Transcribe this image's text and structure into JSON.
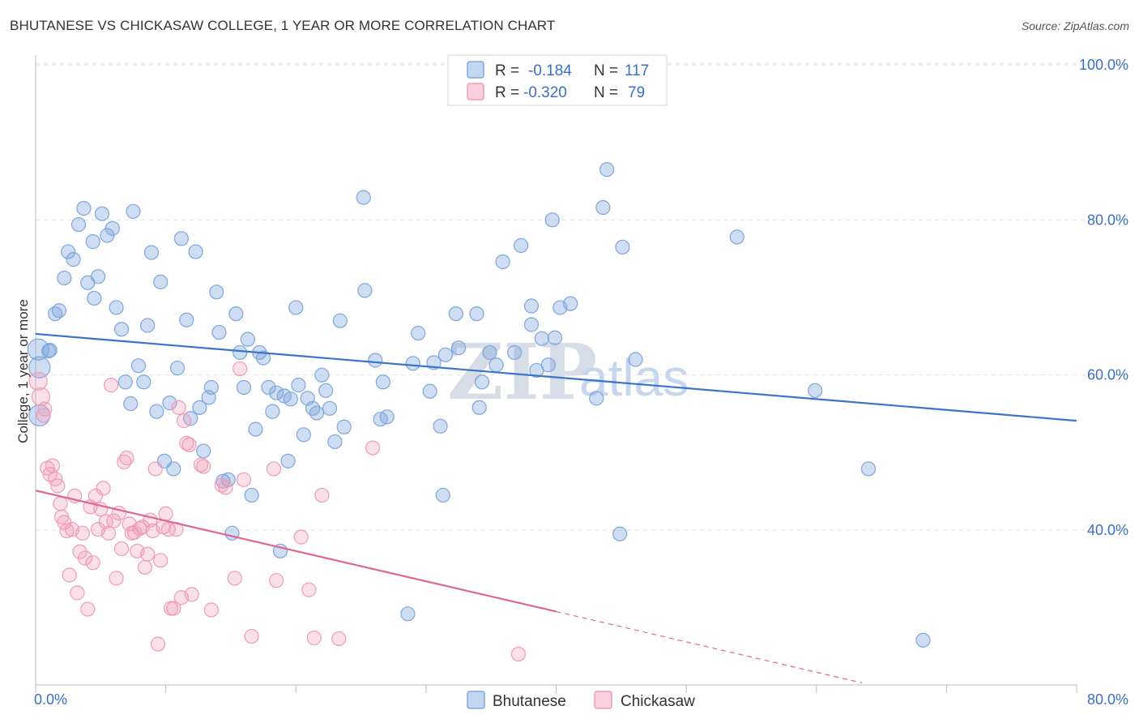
{
  "title": "BHUTANESE VS CHICKASAW COLLEGE, 1 YEAR OR MORE CORRELATION CHART",
  "source": "Source: ZipAtlas.com",
  "legend": {
    "r_label": "R =",
    "n_label": "N =",
    "rows": [
      {
        "name": "Bhutanese",
        "r": "-0.184",
        "n": "117"
      },
      {
        "name": "Chickasaw",
        "r": "-0.320",
        "n": "79"
      }
    ]
  },
  "watermark": {
    "zip": "ZIP",
    "atlas": "atlas"
  },
  "chart_data": {
    "type": "scatter",
    "title": "BHUTANESE VS CHICKASAW COLLEGE, 1 YEAR OR MORE CORRELATION CHART",
    "xlabel": "",
    "ylabel": "College, 1 year or more",
    "xlim": [
      0,
      80
    ],
    "ylim": [
      20,
      103
    ],
    "x_tick_labels": [
      "0.0%",
      "80.0%"
    ],
    "y_ticks": [
      40,
      60,
      80,
      100
    ],
    "y_tick_labels": [
      "40.0%",
      "60.0%",
      "80.0%",
      "100.0%"
    ],
    "grid": true,
    "legend_position": "top-center",
    "colors": {
      "Bhutanese": "#7ea6de",
      "Chickasaw": "#f09ab7",
      "blue_line": "#3a74c9",
      "pink_line": "#e0668f"
    },
    "series": [
      {
        "name": "Bhutanese",
        "trend": {
          "x": [
            0,
            80
          ],
          "y": [
            65.3,
            54.1
          ]
        },
        "points": [
          [
            0.3,
            54.8
          ],
          [
            0.3,
            61.0
          ],
          [
            1.1,
            63.2
          ],
          [
            1.5,
            67.9
          ],
          [
            1.8,
            68.3
          ],
          [
            2.2,
            72.5
          ],
          [
            2.5,
            75.9
          ],
          [
            2.9,
            74.9
          ],
          [
            3.3,
            79.4
          ],
          [
            3.7,
            81.5
          ],
          [
            4.0,
            71.9
          ],
          [
            4.4,
            77.2
          ],
          [
            4.8,
            72.7
          ],
          [
            5.1,
            80.8
          ],
          [
            5.5,
            78.0
          ],
          [
            5.9,
            78.9
          ],
          [
            6.2,
            68.7
          ],
          [
            6.6,
            65.9
          ],
          [
            6.9,
            59.1
          ],
          [
            7.3,
            56.3
          ],
          [
            7.5,
            81.1
          ],
          [
            7.9,
            61.2
          ],
          [
            8.3,
            59.1
          ],
          [
            8.6,
            66.4
          ],
          [
            8.9,
            75.8
          ],
          [
            9.3,
            55.3
          ],
          [
            9.6,
            72.0
          ],
          [
            9.9,
            48.9
          ],
          [
            10.3,
            56.4
          ],
          [
            10.6,
            47.9
          ],
          [
            10.9,
            60.9
          ],
          [
            11.2,
            77.6
          ],
          [
            11.6,
            67.1
          ],
          [
            11.9,
            54.4
          ],
          [
            12.3,
            75.9
          ],
          [
            12.6,
            55.8
          ],
          [
            12.9,
            50.2
          ],
          [
            13.3,
            57.1
          ],
          [
            13.5,
            58.4
          ],
          [
            13.9,
            70.7
          ],
          [
            14.1,
            65.5
          ],
          [
            14.4,
            46.3
          ],
          [
            14.8,
            46.5
          ],
          [
            15.1,
            39.6
          ],
          [
            15.4,
            67.9
          ],
          [
            15.7,
            62.9
          ],
          [
            16.0,
            58.4
          ],
          [
            16.3,
            64.6
          ],
          [
            16.6,
            44.5
          ],
          [
            16.9,
            53.0
          ],
          [
            17.2,
            62.9
          ],
          [
            17.5,
            62.2
          ],
          [
            17.9,
            58.4
          ],
          [
            18.2,
            55.3
          ],
          [
            18.5,
            57.7
          ],
          [
            18.8,
            37.3
          ],
          [
            19.1,
            57.3
          ],
          [
            19.4,
            48.9
          ],
          [
            19.6,
            56.9
          ],
          [
            20.0,
            68.7
          ],
          [
            20.2,
            58.7
          ],
          [
            20.6,
            52.3
          ],
          [
            20.9,
            57.0
          ],
          [
            21.3,
            55.7
          ],
          [
            21.6,
            55.1
          ],
          [
            22.0,
            60.0
          ],
          [
            22.3,
            58.0
          ],
          [
            22.6,
            55.7
          ],
          [
            23.0,
            51.4
          ],
          [
            23.4,
            67.0
          ],
          [
            23.7,
            53.3
          ],
          [
            25.2,
            82.9
          ],
          [
            25.3,
            70.9
          ],
          [
            26.1,
            61.9
          ],
          [
            26.5,
            54.3
          ],
          [
            26.7,
            59.1
          ],
          [
            27.0,
            54.6
          ],
          [
            28.6,
            29.2
          ],
          [
            29.0,
            61.5
          ],
          [
            29.4,
            65.4
          ],
          [
            30.3,
            57.9
          ],
          [
            30.6,
            61.6
          ],
          [
            31.1,
            53.4
          ],
          [
            31.3,
            44.5
          ],
          [
            31.5,
            62.6
          ],
          [
            32.3,
            67.9
          ],
          [
            32.5,
            63.5
          ],
          [
            33.9,
            67.9
          ],
          [
            34.1,
            55.8
          ],
          [
            34.3,
            59.1
          ],
          [
            34.9,
            62.9
          ],
          [
            35.4,
            61.3
          ],
          [
            35.9,
            74.6
          ],
          [
            36.8,
            62.9
          ],
          [
            37.3,
            76.7
          ],
          [
            38.1,
            66.5
          ],
          [
            38.1,
            68.9
          ],
          [
            38.5,
            60.6
          ],
          [
            38.9,
            64.7
          ],
          [
            39.4,
            61.3
          ],
          [
            39.7,
            80.0
          ],
          [
            39.9,
            64.8
          ],
          [
            40.3,
            68.7
          ],
          [
            41.1,
            69.2
          ],
          [
            43.1,
            57.0
          ],
          [
            43.6,
            81.6
          ],
          [
            43.9,
            86.5
          ],
          [
            44.9,
            39.5
          ],
          [
            45.1,
            76.5
          ],
          [
            46.1,
            62.0
          ],
          [
            53.9,
            77.8
          ],
          [
            59.9,
            58.0
          ],
          [
            64.0,
            47.9
          ],
          [
            68.2,
            25.8
          ],
          [
            0.2,
            63.3
          ],
          [
            1.0,
            63.1
          ],
          [
            4.5,
            69.9
          ]
        ]
      },
      {
        "name": "Chickasaw",
        "trend": {
          "x": [
            0,
            40
          ],
          "y": [
            45.1,
            29.5
          ]
        },
        "trend_dashed": {
          "x": [
            40,
            63.5
          ],
          "y": [
            29.5,
            20.3
          ]
        },
        "points": [
          [
            0.2,
            59.2
          ],
          [
            0.4,
            57.2
          ],
          [
            0.6,
            54.8
          ],
          [
            0.7,
            55.6
          ],
          [
            0.9,
            48.0
          ],
          [
            1.1,
            47.2
          ],
          [
            1.3,
            48.3
          ],
          [
            1.5,
            46.6
          ],
          [
            1.7,
            45.7
          ],
          [
            1.9,
            43.4
          ],
          [
            2.0,
            41.7
          ],
          [
            2.2,
            41.0
          ],
          [
            2.4,
            39.9
          ],
          [
            2.6,
            34.2
          ],
          [
            2.8,
            40.1
          ],
          [
            3.0,
            44.4
          ],
          [
            3.2,
            31.9
          ],
          [
            3.4,
            37.2
          ],
          [
            3.6,
            39.6
          ],
          [
            3.8,
            36.4
          ],
          [
            4.0,
            29.8
          ],
          [
            4.2,
            43.0
          ],
          [
            4.4,
            35.8
          ],
          [
            4.6,
            44.4
          ],
          [
            4.8,
            40.1
          ],
          [
            5.0,
            42.7
          ],
          [
            5.2,
            45.4
          ],
          [
            5.4,
            41.1
          ],
          [
            5.6,
            39.6
          ],
          [
            5.8,
            58.7
          ],
          [
            6.0,
            41.2
          ],
          [
            6.2,
            33.8
          ],
          [
            6.4,
            42.2
          ],
          [
            6.6,
            37.6
          ],
          [
            6.8,
            48.8
          ],
          [
            7.0,
            49.3
          ],
          [
            7.2,
            40.8
          ],
          [
            7.4,
            39.6
          ],
          [
            7.6,
            39.7
          ],
          [
            7.8,
            37.3
          ],
          [
            8.0,
            40.2
          ],
          [
            8.2,
            40.4
          ],
          [
            8.4,
            35.2
          ],
          [
            8.6,
            36.9
          ],
          [
            8.8,
            41.3
          ],
          [
            9.0,
            39.9
          ],
          [
            9.2,
            47.9
          ],
          [
            9.4,
            25.3
          ],
          [
            9.6,
            36.1
          ],
          [
            9.8,
            40.4
          ],
          [
            10.0,
            42.1
          ],
          [
            10.2,
            40.1
          ],
          [
            10.4,
            29.9
          ],
          [
            10.6,
            29.9
          ],
          [
            10.8,
            40.1
          ],
          [
            11.0,
            55.8
          ],
          [
            11.2,
            31.3
          ],
          [
            11.4,
            54.1
          ],
          [
            11.6,
            51.2
          ],
          [
            11.8,
            51.0
          ],
          [
            12.0,
            31.7
          ],
          [
            12.7,
            48.4
          ],
          [
            12.9,
            48.2
          ],
          [
            13.5,
            29.7
          ],
          [
            14.3,
            45.8
          ],
          [
            14.6,
            45.5
          ],
          [
            15.3,
            33.8
          ],
          [
            15.7,
            60.8
          ],
          [
            16.0,
            46.5
          ],
          [
            16.6,
            26.3
          ],
          [
            18.3,
            47.9
          ],
          [
            18.5,
            33.5
          ],
          [
            20.4,
            39.1
          ],
          [
            21.0,
            32.3
          ],
          [
            21.4,
            26.1
          ],
          [
            22.0,
            44.5
          ],
          [
            23.3,
            26.0
          ],
          [
            25.9,
            50.6
          ],
          [
            37.1,
            24.0
          ]
        ]
      }
    ]
  }
}
